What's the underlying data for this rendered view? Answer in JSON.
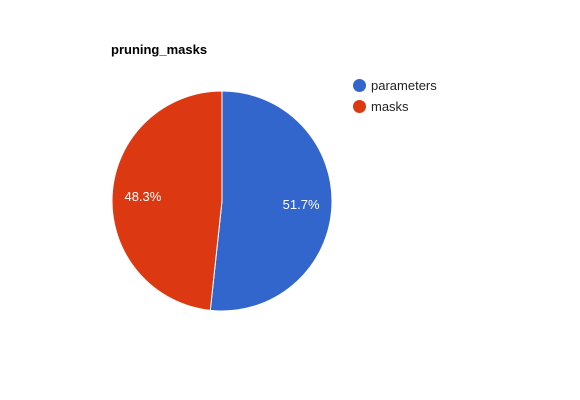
{
  "chart_data": {
    "type": "pie",
    "title": "pruning_masks",
    "slices": [
      {
        "name": "parameters",
        "value": 51.7,
        "label": "51.7%",
        "color": "#3366cc"
      },
      {
        "name": "masks",
        "value": 48.3,
        "label": "48.3%",
        "color": "#dc3912"
      }
    ],
    "legend_position": "top-right"
  }
}
